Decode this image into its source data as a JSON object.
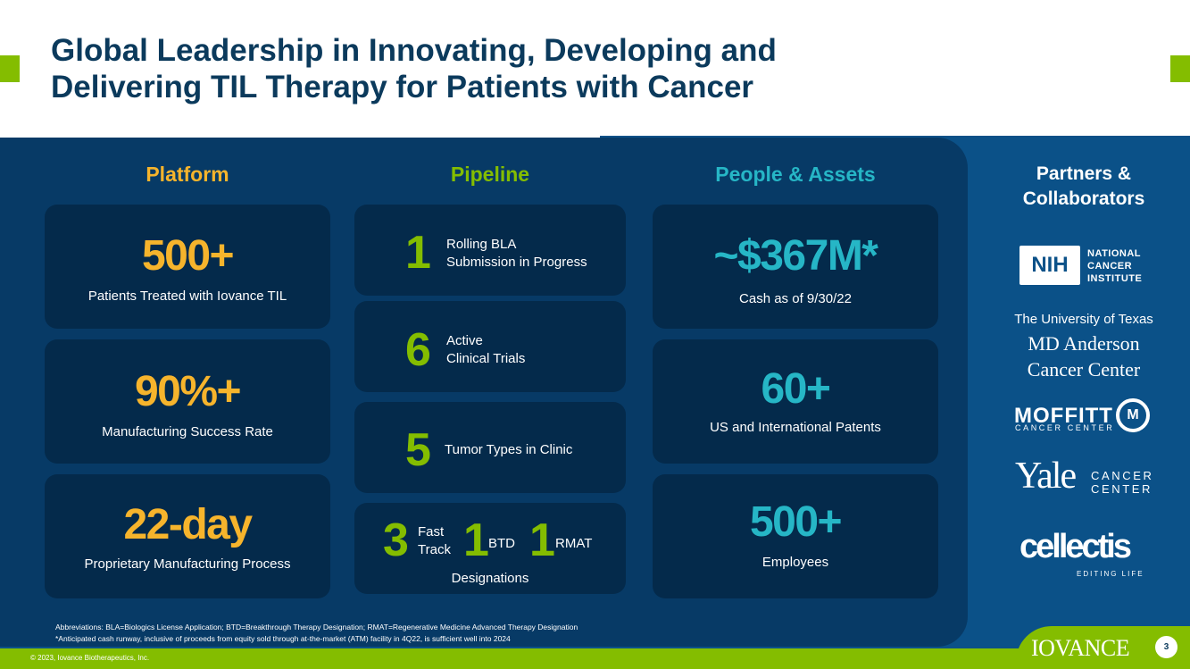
{
  "title": {
    "line1": "Global Leadership in Innovating, Developing and",
    "line2": "Delivering TIL Therapy for Patients with Cancer"
  },
  "colors": {
    "navy": "#073a66",
    "card": "#042a4b",
    "green": "#84bd00",
    "gold": "#f6b42c",
    "teal": "#26b6c6",
    "band": "#0b5188"
  },
  "platform": {
    "heading": "Platform",
    "cards": [
      {
        "value": "500+",
        "label": "Patients Treated with Iovance TIL"
      },
      {
        "value": "90%+",
        "label": "Manufacturing Success Rate"
      },
      {
        "value": "22-day",
        "label": "Proprietary Manufacturing Process"
      }
    ]
  },
  "pipeline": {
    "heading": "Pipeline",
    "cards": [
      {
        "value": "1",
        "line1": "Rolling BLA",
        "line2": "Submission in Progress"
      },
      {
        "value": "6",
        "line1": "Active",
        "line2": "Clinical Trials"
      },
      {
        "value": "5",
        "line1": "Tumor Types in Clinic"
      }
    ],
    "designations": {
      "fast_value": "3",
      "fast_line1": "Fast",
      "fast_line2": "Track",
      "btd_value": "1",
      "btd_label": "BTD",
      "rmat_value": "1",
      "rmat_label": "RMAT",
      "label": "Designations"
    }
  },
  "people": {
    "heading": "People & Assets",
    "cards": [
      {
        "value": "~$367M*",
        "label": "Cash as of 9/30/22"
      },
      {
        "value": "60+",
        "label": "US and International Patents"
      },
      {
        "value": "500+",
        "label": "Employees"
      }
    ]
  },
  "partners": {
    "heading_line1": "Partners &",
    "heading_line2": "Collaborators",
    "nih_mark": "NIH",
    "nih_line1": "NATIONAL",
    "nih_line2": "CANCER",
    "nih_line3": "INSTITUTE",
    "mda_line1": "The University of Texas",
    "mda_line2": "MD Anderson",
    "mda_line3": "Cancer Center",
    "moffitt": "MOFFITT",
    "moffitt_sub": "CANCER CENTER",
    "moffitt_icon": "M",
    "yale": "Yale",
    "yale_sub1": "CANCER",
    "yale_sub2": "CENTER",
    "cellectis": "cellectis",
    "cellectis_sub": "EDITING LIFE"
  },
  "footnotes": {
    "abbreviations": "Abbreviations: BLA=Biologics License Application; BTD=Breakthrough Therapy Designation; RMAT=Regenerative Medicine Advanced Therapy Designation",
    "runway": "*Anticipated cash runway, inclusive of proceeds from equity sold through at-the-market (ATM) facility in 4Q22, is sufficient well into 2024"
  },
  "footer": {
    "copyright": "© 2023, Iovance Biotherapeutics, Inc.",
    "brand": "IOVANCE",
    "page": "3"
  }
}
